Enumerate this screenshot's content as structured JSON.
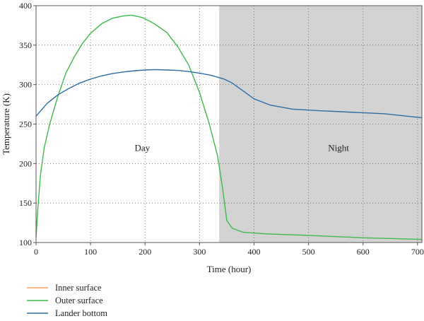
{
  "chart_data": {
    "type": "line",
    "xlabel": "Time (hour)",
    "ylabel": "Temperature (K)",
    "xlim": [
      0,
      708
    ],
    "ylim": [
      100,
      400
    ],
    "xticks": [
      0,
      100,
      200,
      300,
      400,
      500,
      600,
      700
    ],
    "yticks": [
      100,
      150,
      200,
      250,
      300,
      350,
      400
    ],
    "grid": true,
    "legend_position": "bottom-left",
    "regions": [
      {
        "label": "Day",
        "x_start": 0,
        "x_end": 336,
        "shaded": false,
        "label_x": 195,
        "label_y": 216
      },
      {
        "label": "Night",
        "x_start": 336,
        "x_end": 708,
        "shaded": true,
        "color": "#d3d3d3",
        "label_x": 555,
        "label_y": 216
      }
    ],
    "series": [
      {
        "name": "Inner surface",
        "color": "#f4a460",
        "points": []
      },
      {
        "name": "Outer surface",
        "color": "#3cba4a",
        "points": [
          [
            0,
            107
          ],
          [
            3,
            140
          ],
          [
            8,
            185
          ],
          [
            15,
            220
          ],
          [
            25,
            250
          ],
          [
            40,
            285
          ],
          [
            55,
            315
          ],
          [
            70,
            335
          ],
          [
            85,
            352
          ],
          [
            100,
            365
          ],
          [
            120,
            377
          ],
          [
            140,
            384
          ],
          [
            160,
            387
          ],
          [
            175,
            388
          ],
          [
            195,
            385
          ],
          [
            215,
            378
          ],
          [
            240,
            366
          ],
          [
            260,
            348
          ],
          [
            280,
            325
          ],
          [
            300,
            290
          ],
          [
            318,
            250
          ],
          [
            333,
            210
          ],
          [
            342,
            170
          ],
          [
            350,
            128
          ],
          [
            360,
            118
          ],
          [
            380,
            113
          ],
          [
            420,
            111
          ],
          [
            500,
            109
          ],
          [
            600,
            106
          ],
          [
            708,
            104
          ]
        ]
      },
      {
        "name": "Lander bottom",
        "color": "#2e6da4",
        "points": [
          [
            0,
            260
          ],
          [
            20,
            276
          ],
          [
            40,
            287
          ],
          [
            60,
            295
          ],
          [
            80,
            302
          ],
          [
            100,
            307
          ],
          [
            120,
            311
          ],
          [
            140,
            314
          ],
          [
            160,
            316
          ],
          [
            180,
            317.5
          ],
          [
            200,
            318.5
          ],
          [
            220,
            319
          ],
          [
            240,
            318.5
          ],
          [
            260,
            318
          ],
          [
            280,
            316.5
          ],
          [
            300,
            314.5
          ],
          [
            320,
            312
          ],
          [
            345,
            307
          ],
          [
            360,
            302
          ],
          [
            380,
            292
          ],
          [
            400,
            282
          ],
          [
            430,
            274
          ],
          [
            470,
            269
          ],
          [
            520,
            267
          ],
          [
            580,
            265
          ],
          [
            640,
            263
          ],
          [
            708,
            258
          ]
        ]
      }
    ]
  }
}
